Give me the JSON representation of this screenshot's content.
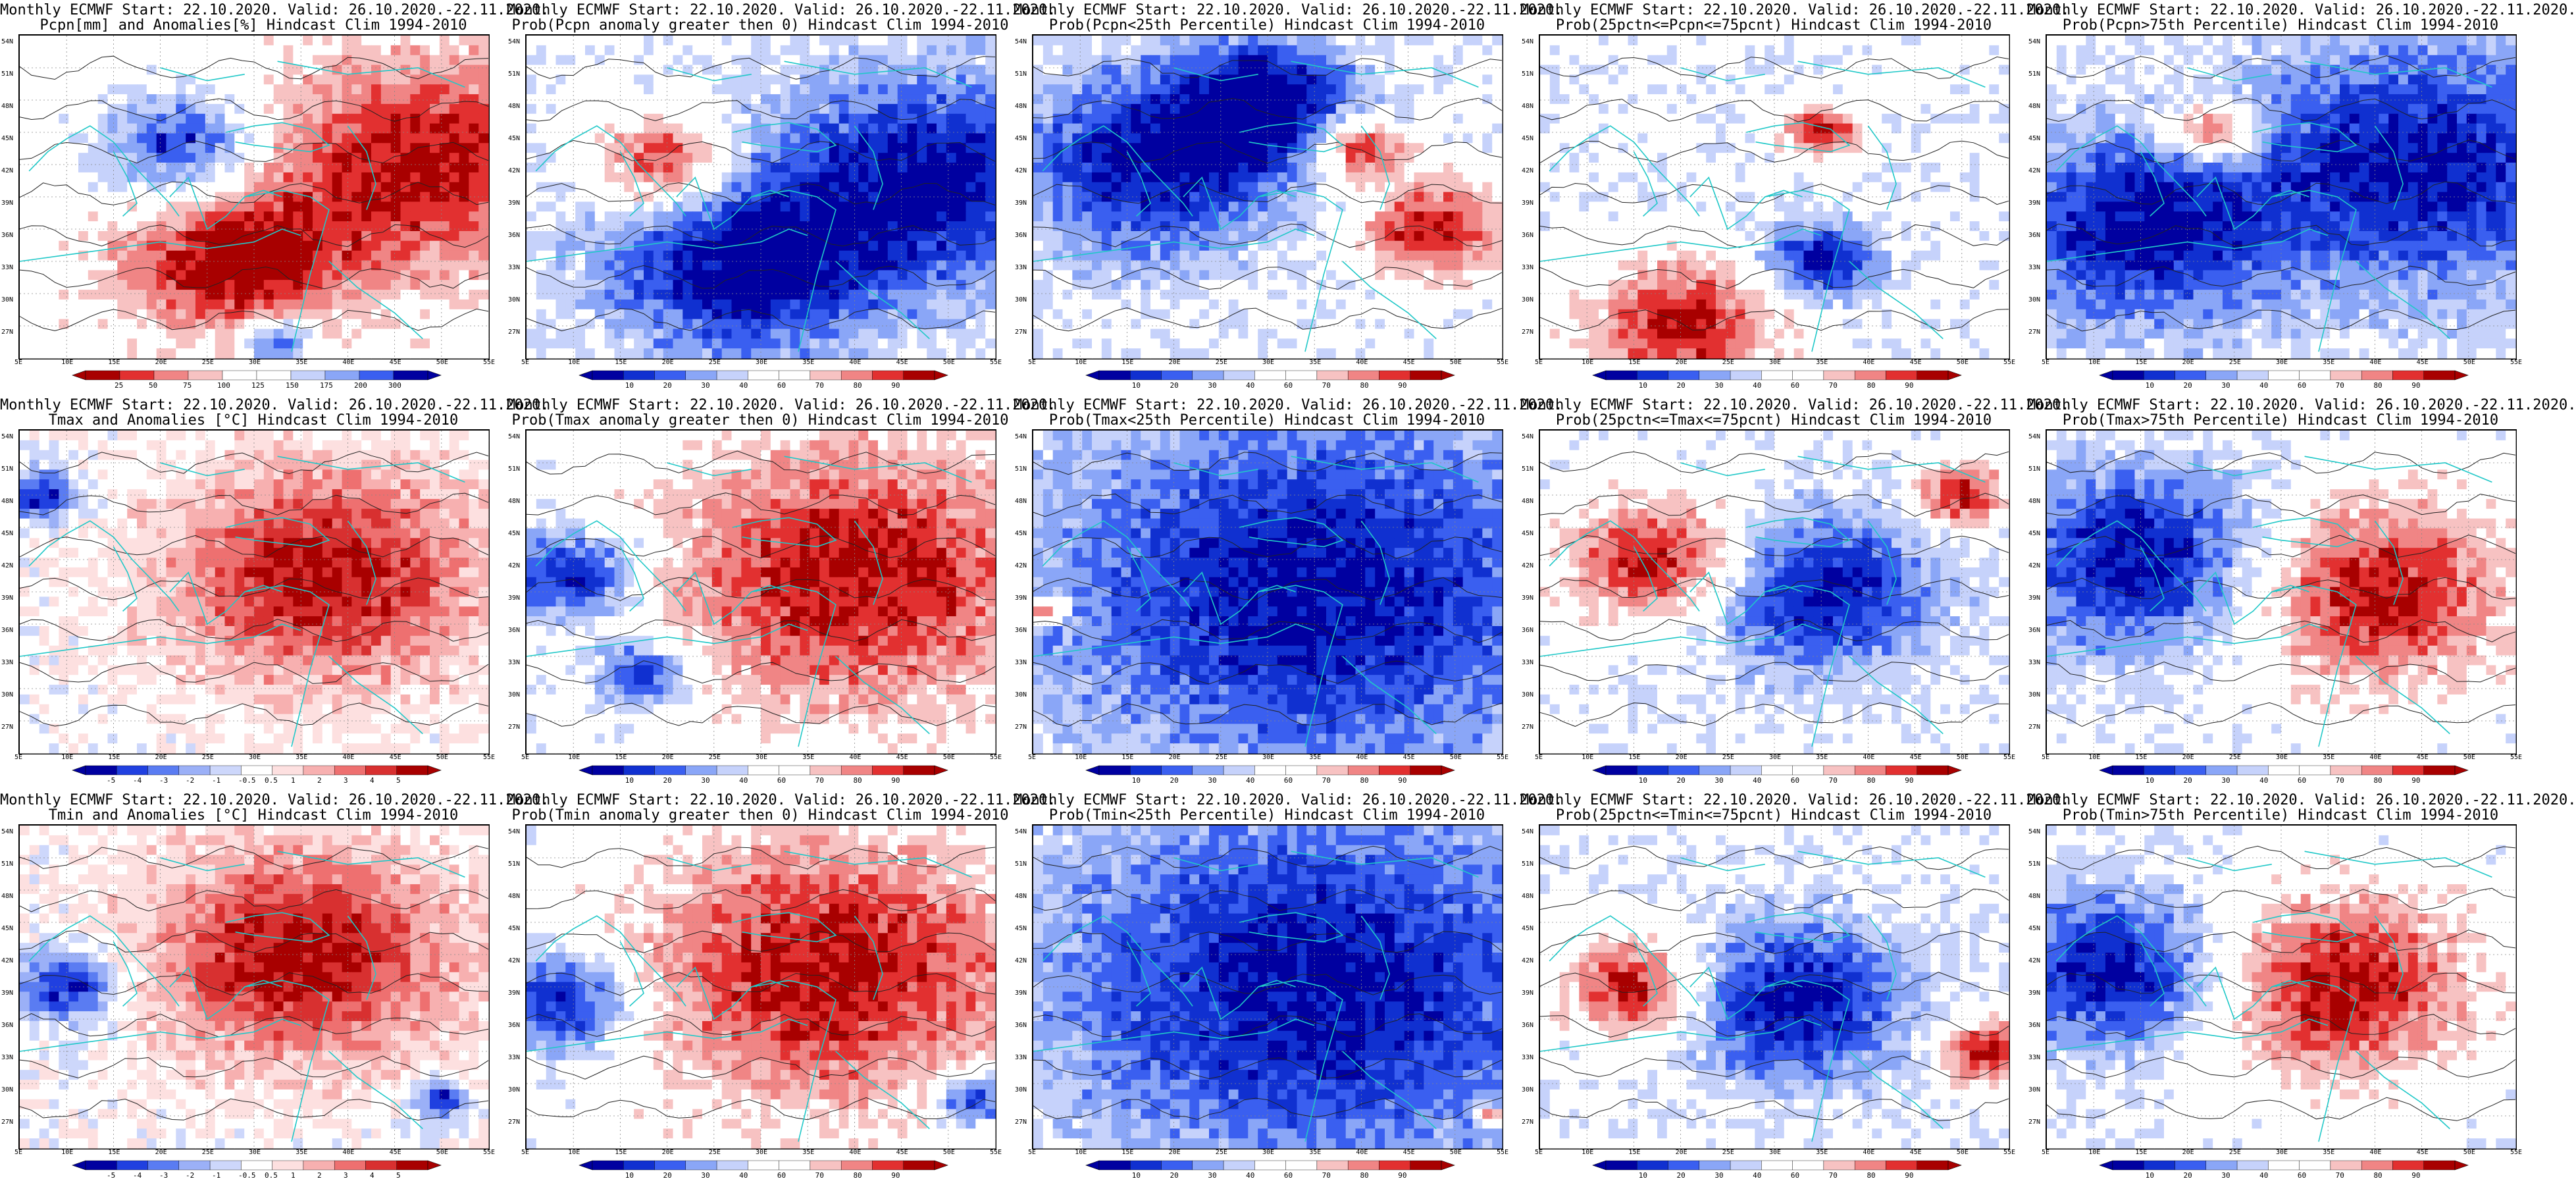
{
  "panels": [
    {
      "id": "pcpn-anom",
      "row": 0,
      "col": 0,
      "title1": "Monthly ECMWF Start: 22.10.2020. Valid: 26.10.2020.-22.11.2020.",
      "title2": "Pcpn[mm] and Anomalies[%] Hindcast Clim 1994-2010",
      "scale": "anom",
      "colorbar_labels": [
        "25",
        "50",
        "75",
        "100",
        "125",
        "150",
        "175",
        "200",
        "300"
      ]
    },
    {
      "id": "pcpn-gt0",
      "row": 0,
      "col": 1,
      "title1": "Monthly ECMWF Start: 22.10.2020. Valid: 26.10.2020.-22.11.2020.",
      "title2": "Prob(Pcpn anomaly greater then 0) Hindcast Clim 1994-2010",
      "scale": "prob",
      "colorbar_labels": [
        "10",
        "20",
        "30",
        "40",
        "60",
        "70",
        "80",
        "90"
      ]
    },
    {
      "id": "pcpn-lt25",
      "row": 0,
      "col": 2,
      "title1": "Monthly ECMWF Start: 22.10.2020. Valid: 26.10.2020.-22.11.2020.",
      "title2": "Prob(Pcpn<25th Percentile) Hindcast Clim 1994-2010",
      "scale": "prob",
      "colorbar_labels": [
        "10",
        "20",
        "30",
        "40",
        "60",
        "70",
        "80",
        "90"
      ]
    },
    {
      "id": "pcpn-mid",
      "row": 0,
      "col": 3,
      "title1": "Monthly ECMWF Start: 22.10.2020. Valid: 26.10.2020.-22.11.2020.",
      "title2": "Prob(25pctn<=Pcpn<=75pcnt) Hindcast Clim 1994-2010",
      "scale": "prob",
      "colorbar_labels": [
        "10",
        "20",
        "30",
        "40",
        "60",
        "70",
        "80",
        "90"
      ]
    },
    {
      "id": "pcpn-gt75",
      "row": 0,
      "col": 4,
      "title1": "Monthly ECMWF Start: 22.10.2020. Valid: 26.10.2020.-22.11.2020.",
      "title2": "Prob(Pcpn>75th Percentile) Hindcast Clim 1994-2010",
      "scale": "prob",
      "colorbar_labels": [
        "10",
        "20",
        "30",
        "40",
        "60",
        "70",
        "80",
        "90"
      ]
    },
    {
      "id": "tmax-anom",
      "row": 1,
      "col": 0,
      "title1": "Monthly ECMWF Start: 22.10.2020. Valid: 26.10.2020.-22.11.2020.",
      "title2": "Tmax and Anomalies [°C] Hindcast Clim 1994-2010",
      "scale": "temp",
      "colorbar_labels": [
        "-5",
        "-4",
        "-3",
        "-2",
        "-1",
        "-0.5",
        "0.5",
        "1",
        "2",
        "3",
        "4",
        "5"
      ]
    },
    {
      "id": "tmax-gt0",
      "row": 1,
      "col": 1,
      "title1": "Monthly ECMWF Start: 22.10.2020. Valid: 26.10.2020.-22.11.2020.",
      "title2": "Prob(Tmax anomaly greater then 0) Hindcast Clim 1994-2010",
      "scale": "prob",
      "colorbar_labels": [
        "10",
        "20",
        "30",
        "40",
        "60",
        "70",
        "80",
        "90"
      ]
    },
    {
      "id": "tmax-lt25",
      "row": 1,
      "col": 2,
      "title1": "Monthly ECMWF Start: 22.10.2020. Valid: 26.10.2020.-22.11.2020.",
      "title2": "Prob(Tmax<25th Percentile) Hindcast Clim 1994-2010",
      "scale": "prob",
      "colorbar_labels": [
        "10",
        "20",
        "30",
        "40",
        "60",
        "70",
        "80",
        "90"
      ]
    },
    {
      "id": "tmax-mid",
      "row": 1,
      "col": 3,
      "title1": "Monthly ECMWF Start: 22.10.2020. Valid: 26.10.2020.-22.11.2020.",
      "title2": "Prob(25pctn<=Tmax<=75pcnt) Hindcast Clim 1994-2010",
      "scale": "prob",
      "colorbar_labels": [
        "10",
        "20",
        "30",
        "40",
        "60",
        "70",
        "80",
        "90"
      ]
    },
    {
      "id": "tmax-gt75",
      "row": 1,
      "col": 4,
      "title1": "Monthly ECMWF Start: 22.10.2020. Valid: 26.10.2020.-22.11.2020.",
      "title2": "Prob(Tmax>75th Percentile) Hindcast Clim 1994-2010",
      "scale": "prob",
      "colorbar_labels": [
        "10",
        "20",
        "30",
        "40",
        "60",
        "70",
        "80",
        "90"
      ]
    },
    {
      "id": "tmin-anom",
      "row": 2,
      "col": 0,
      "title1": "Monthly ECMWF Start: 22.10.2020. Valid: 26.10.2020.-22.11.2020.",
      "title2": "Tmin and Anomalies [°C] Hindcast Clim 1994-2010",
      "scale": "temp",
      "colorbar_labels": [
        "-5",
        "-4",
        "-3",
        "-2",
        "-1",
        "-0.5",
        "0.5",
        "1",
        "2",
        "3",
        "4",
        "5"
      ]
    },
    {
      "id": "tmin-gt0",
      "row": 2,
      "col": 1,
      "title1": "Monthly ECMWF Start: 22.10.2020. Valid: 26.10.2020.-22.11.2020.",
      "title2": "Prob(Tmin anomaly greater then 0) Hindcast Clim 1994-2010",
      "scale": "prob",
      "colorbar_labels": [
        "10",
        "20",
        "30",
        "40",
        "60",
        "70",
        "80",
        "90"
      ]
    },
    {
      "id": "tmin-lt25",
      "row": 2,
      "col": 2,
      "title1": "Monthly ECMWF Start: 22.10.2020. Valid: 26.10.2020.-22.11.2020.",
      "title2": "Prob(Tmin<25th Percentile) Hindcast Clim 1994-2010",
      "scale": "prob",
      "colorbar_labels": [
        "10",
        "20",
        "30",
        "40",
        "60",
        "70",
        "80",
        "90"
      ]
    },
    {
      "id": "tmin-mid",
      "row": 2,
      "col": 3,
      "title1": "Monthly ECMWF Start: 22.10.2020. Valid: 26.10.2020.-22.11.2020.",
      "title2": "Prob(25pctn<=Tmin<=75pcnt) Hindcast Clim 1994-2010",
      "scale": "prob",
      "colorbar_labels": [
        "10",
        "20",
        "30",
        "40",
        "60",
        "70",
        "80",
        "90"
      ]
    },
    {
      "id": "tmin-gt75",
      "row": 2,
      "col": 4,
      "title1": "Monthly ECMWF Start: 22.10.2020. Valid: 26.10.2020.-22.11.2020.",
      "title2": "Prob(Tmin>75th Percentile) Hindcast Clim 1994-2010",
      "scale": "prob",
      "colorbar_labels": [
        "10",
        "20",
        "30",
        "40",
        "60",
        "70",
        "80",
        "90"
      ]
    }
  ],
  "lat_labels": [
    "54N",
    "51N",
    "48N",
    "45N",
    "42N",
    "39N",
    "36N",
    "33N",
    "30N",
    "27N"
  ],
  "lon_labels": [
    "5E",
    "10E",
    "15E",
    "20E",
    "25E",
    "30E",
    "35E",
    "40E",
    "45E",
    "50E",
    "55E"
  ],
  "palette": {
    "prob": [
      "#0000a0",
      "#1030d0",
      "#3a5ff0",
      "#8aa6f7",
      "#c6d2fb",
      "#ffffff",
      "#ffffff",
      "#f7c2c2",
      "#f08585",
      "#e23030",
      "#a80000"
    ],
    "temp": [
      "#0000a0",
      "#2040e0",
      "#5a7cf2",
      "#9bb0f7",
      "#cdd7fb",
      "#ffffff",
      "#fde0e0",
      "#f7b0b0",
      "#ee7070",
      "#d83030",
      "#a80000"
    ],
    "anom": [
      "#a80000",
      "#e23030",
      "#f08585",
      "#f7c2c2",
      "#ffffff",
      "#ffffff",
      "#c6d2fb",
      "#8aa6f7",
      "#3a5ff0",
      "#0000a0"
    ],
    "coast": "#20c8c8",
    "contour": "#222222"
  }
}
